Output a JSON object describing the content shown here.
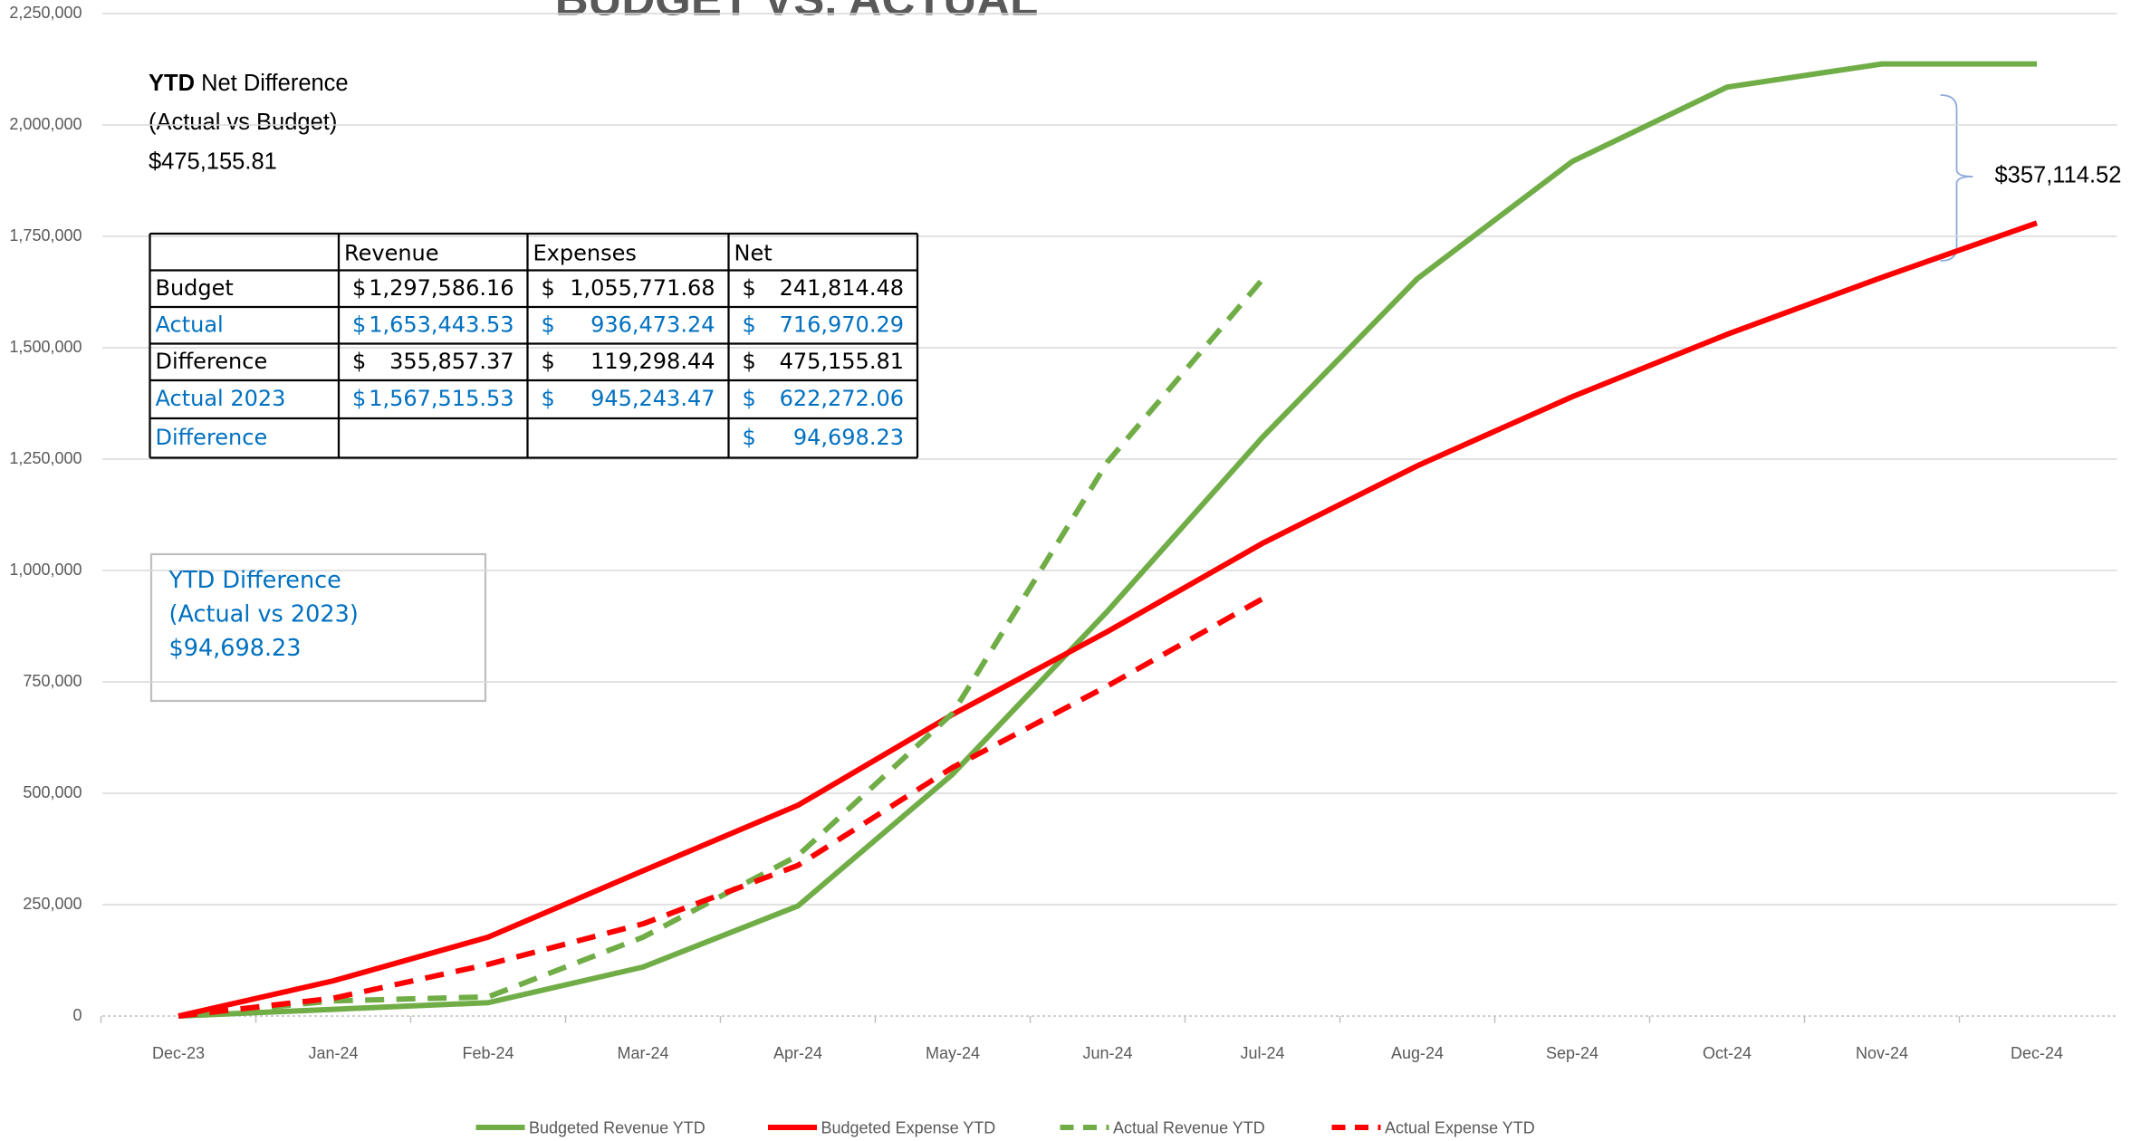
{
  "chart_data": {
    "type": "line",
    "title": "BUDGET VS. ACTUAL",
    "categories": [
      "Dec-23",
      "Jan-24",
      "Feb-24",
      "Mar-24",
      "Apr-24",
      "May-24",
      "Jun-24",
      "Jul-24",
      "Aug-24",
      "Sep-24",
      "Oct-24",
      "Nov-24",
      "Dec-24"
    ],
    "series": [
      {
        "name": "Budgeted Revenue YTD",
        "color": "#70ad47",
        "dashed": false,
        "values": [
          0,
          15000,
          30000,
          110000,
          247000,
          543000,
          909000,
          1299000,
          1655000,
          1918000,
          2085000,
          2137000,
          2137000
        ]
      },
      {
        "name": "Budgeted Expense YTD",
        "color": "#ff0000",
        "dashed": false,
        "values": [
          0,
          79000,
          177000,
          326000,
          473000,
          677000,
          863000,
          1061000,
          1235000,
          1390000,
          1530000,
          1658000,
          1780000
        ]
      },
      {
        "name": "Actual Revenue YTD",
        "color": "#70ad47",
        "dashed": true,
        "values": [
          0,
          34000,
          43000,
          177000,
          360000,
          680000,
          1244000,
          1653443.53,
          null,
          null,
          null,
          null,
          null
        ]
      },
      {
        "name": "Actual Expense YTD",
        "color": "#ff0000",
        "dashed": true,
        "values": [
          0,
          40000,
          116000,
          207000,
          338000,
          558000,
          741000,
          936473.24,
          null,
          null,
          null,
          null,
          null
        ]
      }
    ],
    "ylim": [
      0,
      2250000
    ],
    "yticks": [
      0,
      {
        "value": 250000,
        "label": "250,000"
      },
      {
        "value": 500000,
        "label": "500,000"
      },
      {
        "value": 750000,
        "label": "750,000"
      },
      {
        "value": 1000000,
        "label": "1,000,000"
      },
      {
        "value": 1250000,
        "label": "1,250,000"
      },
      {
        "value": 1500000,
        "label": "1,500,000"
      },
      {
        "value": 1750000,
        "label": "1,750,000"
      },
      {
        "value": 2000000,
        "label": "2,000,000"
      },
      {
        "value": 2250000,
        "label": "2,250,000"
      }
    ],
    "grid": true,
    "legend": "bottom",
    "annotation": "$357,114.52",
    "net_note": {
      "bold": "YTD",
      "lines": [
        " Net Difference",
        "(Actual vs Budget)",
        "$475,155.81"
      ]
    },
    "diff_note": {
      "lines": [
        "YTD Difference",
        "(Actual vs 2023)",
        "$94,698.23"
      ],
      "color": "#0070c0"
    },
    "table": {
      "header": [
        "",
        "Revenue",
        "Expenses",
        "Net"
      ],
      "rows": [
        {
          "color": "#000000",
          "cells": [
            "Budget",
            [
              "$",
              "1,297,586.16"
            ],
            [
              "$",
              "1,055,771.68"
            ],
            [
              "$",
              "241,814.48"
            ]
          ]
        },
        {
          "color": "#0070c0",
          "cells": [
            "Actual",
            [
              "$",
              "1,653,443.53"
            ],
            [
              "$",
              "936,473.24"
            ],
            [
              "$",
              "716,970.29"
            ]
          ]
        },
        {
          "color": "#000000",
          "cells": [
            "Difference",
            [
              "$",
              "355,857.37"
            ],
            [
              "$",
              "119,298.44"
            ],
            [
              "$",
              "475,155.81"
            ]
          ]
        },
        {
          "color": "#0070c0",
          "cells": [
            "Actual 2023",
            [
              "$",
              "1,567,515.53"
            ],
            [
              "$",
              "945,243.47"
            ],
            [
              "$",
              "622,272.06"
            ]
          ]
        },
        {
          "color": "#0070c0",
          "cells": [
            "Difference",
            null,
            null,
            [
              "$",
              "94,698.23"
            ]
          ]
        }
      ]
    }
  }
}
